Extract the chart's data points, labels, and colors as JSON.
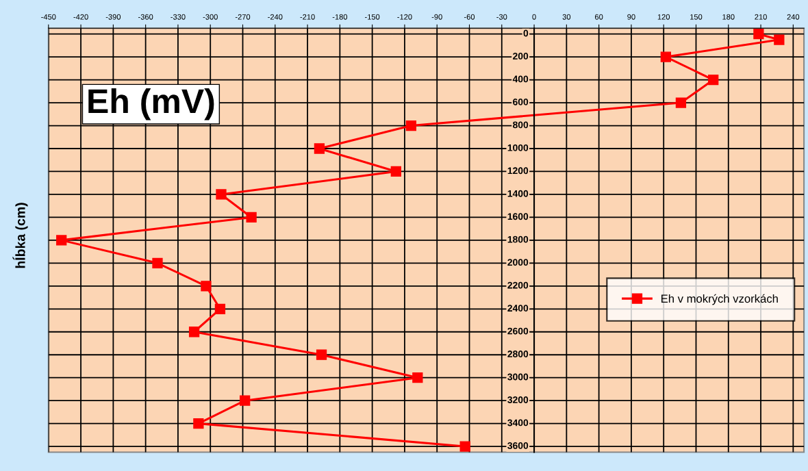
{
  "chart_data": {
    "type": "line",
    "title": "Eh (mV)",
    "ylabel": "hĺbka (cm)",
    "series": [
      {
        "name": "Eh v mokrých vzorkách",
        "color": "#ff0000",
        "x": [
          208,
          227,
          122,
          166,
          136,
          -114,
          -199,
          -128,
          -290,
          -262,
          -438,
          -349,
          -304,
          -291,
          -315,
          -197,
          -108,
          -268,
          -311,
          -64
        ],
        "values": [
          0,
          50,
          200,
          400,
          600,
          800,
          1000,
          1200,
          1400,
          1600,
          1800,
          2000,
          2200,
          2400,
          2600,
          2800,
          3000,
          3200,
          3400,
          3600
        ]
      }
    ],
    "xlim": [
      -450,
      250
    ],
    "xticks": [
      -450,
      -420,
      -390,
      -360,
      -330,
      -300,
      -270,
      -240,
      -210,
      -180,
      -150,
      -120,
      -90,
      -60,
      -30,
      0,
      30,
      60,
      90,
      120,
      150,
      180,
      210,
      240
    ],
    "ylim": [
      3650,
      -50
    ],
    "yticks": [
      0,
      200,
      400,
      600,
      800,
      1000,
      1200,
      1400,
      1600,
      1800,
      2000,
      2200,
      2400,
      2600,
      2800,
      3000,
      3200,
      3400,
      3600
    ],
    "grid": true,
    "legend": "right",
    "marker": "square",
    "line_style": "solid"
  }
}
